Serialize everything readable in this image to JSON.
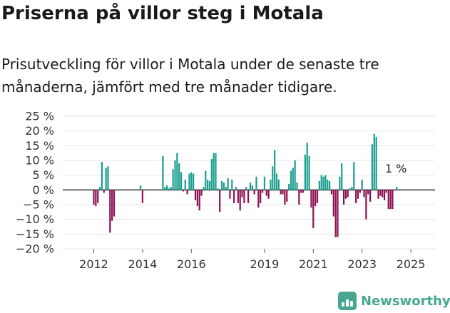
{
  "title": "Priserna på villor steg i Motala",
  "subtitle": "Prisutveckling för villor i Motala under de senaste tre månaderna, jämfört med tre månader tidigare.",
  "brand": {
    "name": "Newsworthy",
    "icon": "bar-chart-icon",
    "color": "#47a692"
  },
  "chart_data": {
    "type": "bar",
    "xlabel": "",
    "ylabel": "",
    "ylim": [
      -20,
      25
    ],
    "yticks": [
      -20,
      -15,
      -10,
      -5,
      0,
      5,
      10,
      15,
      20,
      25
    ],
    "ytick_labels": [
      "−20 %",
      "−15 %",
      "−10 %",
      "−5 %",
      "0 %",
      "5 %",
      "10 %",
      "15 %",
      "20 %",
      "25 %"
    ],
    "x_start": "2011-01",
    "xticks": [
      {
        "label": "2012",
        "index": 12
      },
      {
        "label": "2014",
        "index": 36
      },
      {
        "label": "2016",
        "index": 60
      },
      {
        "label": "2019",
        "index": 96
      },
      {
        "label": "2021",
        "index": 120
      },
      {
        "label": "2023",
        "index": 144
      },
      {
        "label": "2025",
        "index": 168
      }
    ],
    "positive_color": "#1a9e8e",
    "negative_color": "#8c1152",
    "annotation": "1 %",
    "values": [
      null,
      null,
      null,
      null,
      null,
      null,
      null,
      null,
      null,
      null,
      null,
      null,
      -5.0,
      -5.5,
      -4.5,
      1.0,
      9.5,
      -1.0,
      7.5,
      8.0,
      -14.5,
      -10.5,
      -9.0,
      null,
      null,
      null,
      null,
      null,
      null,
      null,
      null,
      null,
      null,
      null,
      null,
      1.5,
      -4.5,
      null,
      null,
      null,
      null,
      null,
      null,
      null,
      null,
      null,
      11.5,
      1.0,
      1.5,
      0.5,
      1.0,
      7.0,
      10.0,
      12.5,
      9.0,
      6.0,
      -0.5,
      3.5,
      -1.5,
      5.5,
      6.0,
      5.5,
      -3.5,
      -5.5,
      -7.0,
      -2.0,
      1.0,
      6.5,
      3.5,
      3.0,
      10.5,
      12.5,
      12.5,
      0.5,
      -7.5,
      3.0,
      2.5,
      1.0,
      4.0,
      -3.0,
      3.5,
      -4.5,
      1.0,
      -4.5,
      -7.0,
      -2.5,
      -4.5,
      1.0,
      -4.5,
      2.5,
      1.5,
      -1.5,
      4.5,
      -6.0,
      -4.5,
      -1.0,
      4.5,
      -2.0,
      -3.0,
      3.5,
      8.0,
      13.5,
      5.5,
      3.5,
      -1.5,
      -1.5,
      -5.0,
      -4.0,
      2.0,
      6.5,
      7.5,
      10.0,
      2.5,
      -5.0,
      -1.0,
      -1.0,
      12.0,
      16.0,
      11.5,
      -6.0,
      -13.0,
      -5.5,
      -4.5,
      3.0,
      5.0,
      4.5,
      5.0,
      3.5,
      3.0,
      -1.5,
      -9.0,
      -16.0,
      -16.0,
      4.5,
      9.0,
      -5.0,
      -3.0,
      -2.5,
      0.5,
      1.0,
      9.5,
      -4.5,
      -3.0,
      -1.0,
      3.5,
      -2.5,
      -10.0,
      -1.5,
      -4.0,
      15.5,
      19.0,
      18.0,
      -3.0,
      -2.0,
      -2.5,
      -3.5,
      -1.0,
      -6.5,
      -6.5,
      -6.5,
      0.0,
      1.0
    ]
  }
}
